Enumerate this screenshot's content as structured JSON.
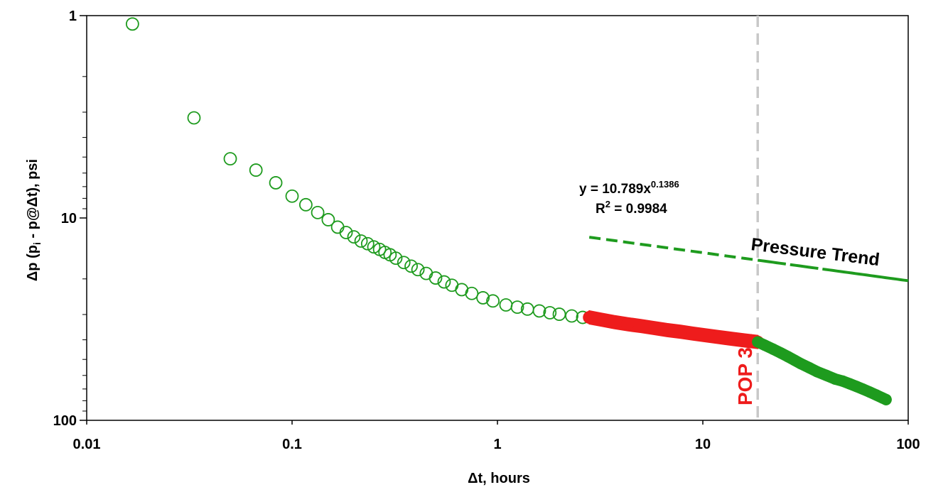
{
  "chart_data": {
    "type": "scatter",
    "xscale": "log",
    "yscale": "log",
    "y_inverted": true,
    "xlim": [
      0.01,
      100
    ],
    "ylim": [
      1,
      100
    ],
    "xlabel": "Δt, hours",
    "ylabel_parts": [
      "Δp (p",
      "i",
      " - p@Δt), psi"
    ],
    "x_tick_labels": [
      "0.01",
      "0.1",
      "1",
      "10",
      "100"
    ],
    "x_tick_values": [
      0.01,
      0.1,
      1,
      10,
      100
    ],
    "y_tick_labels": [
      "1",
      "10",
      "100"
    ],
    "y_tick_values": [
      1,
      10,
      100
    ],
    "grid": false,
    "fit_equation_parts": [
      "y = 10.789x",
      "0.1386"
    ],
    "r_squared_parts": [
      "R",
      "2",
      " = 0.9984"
    ],
    "trend_label": "Pressure Trend",
    "event_label": "POP 3H",
    "event_x": 18.5,
    "fit": {
      "a": 10.789,
      "b": 0.1386,
      "fit_range": [
        2.8,
        18.5
      ],
      "extension_range": [
        18.5,
        100
      ]
    },
    "series": [
      {
        "type": "open-circles",
        "color": "#1e9b1e",
        "x": [
          0.0167,
          0.0333,
          0.05,
          0.0667,
          0.0833,
          0.1,
          0.1167,
          0.1333,
          0.15,
          0.1667,
          0.1833,
          0.2,
          0.2167,
          0.2333,
          0.25,
          0.2667,
          0.2833,
          0.3,
          0.32,
          0.35,
          0.38,
          0.41,
          0.45,
          0.5,
          0.55,
          0.6,
          0.67,
          0.75,
          0.85,
          0.95,
          1.1,
          1.25,
          1.4,
          1.6,
          1.8,
          2.0,
          2.3,
          2.6
        ],
        "y": [
          1.1,
          3.2,
          5.1,
          5.8,
          6.7,
          7.8,
          8.6,
          9.4,
          10.2,
          11.1,
          11.8,
          12.4,
          13.0,
          13.4,
          13.9,
          14.3,
          14.8,
          15.2,
          15.8,
          16.6,
          17.3,
          18.0,
          18.8,
          19.8,
          20.7,
          21.5,
          22.6,
          23.6,
          24.8,
          25.7,
          26.9,
          27.6,
          28.2,
          28.8,
          29.4,
          29.9,
          30.5,
          31.0
        ]
      },
      {
        "type": "filled-markers",
        "color": "#ee1c1c",
        "x": [
          2.8,
          3.2,
          3.7,
          4.3,
          5.0,
          5.8,
          6.7,
          7.8,
          9.0,
          10.5,
          12.0,
          14.0,
          16.0,
          18.5
        ],
        "y": [
          31.0,
          31.8,
          32.7,
          33.5,
          34.2,
          35.0,
          35.8,
          36.5,
          37.3,
          38.1,
          38.8,
          39.6,
          40.3,
          41.0
        ]
      },
      {
        "type": "filled-circles",
        "color": "#1e9b1e",
        "x": [
          18.5,
          20,
          22,
          24,
          26,
          28,
          30,
          33,
          36,
          40,
          44,
          48,
          52,
          56,
          60,
          65,
          70,
          75,
          78
        ],
        "y": [
          41.0,
          42.5,
          44.5,
          46.5,
          48.5,
          50.5,
          52.5,
          55.0,
          57.5,
          60.0,
          62.5,
          64.0,
          66.0,
          68.0,
          70.0,
          72.5,
          75.0,
          77.5,
          79.0
        ]
      }
    ]
  }
}
